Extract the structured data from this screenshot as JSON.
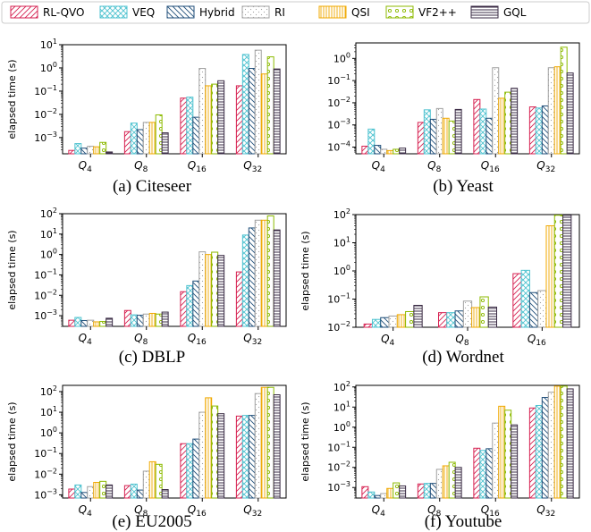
{
  "legend": [
    {
      "name": "RL-QVO",
      "color": "#d62050",
      "pattern": "fdiag"
    },
    {
      "name": "VEQ",
      "color": "#4fc3d0",
      "pattern": "cross"
    },
    {
      "name": "Hybrid",
      "color": "#1f4e79",
      "pattern": "bdiag"
    },
    {
      "name": "RI",
      "color": "#a0a0a0",
      "pattern": "dots"
    },
    {
      "name": "QSI",
      "color": "#f0a800",
      "pattern": "vert"
    },
    {
      "name": "VF2++",
      "color": "#8cba00",
      "pattern": "circles"
    },
    {
      "name": "GQL",
      "color": "#3a2b44",
      "pattern": "horiz"
    }
  ],
  "chart_data": [
    {
      "type": "bar",
      "caption": "(a) Citeseer",
      "ylabel": "elapsed time (s)",
      "yscale": "log",
      "ylim": [
        0.0002,
        10
      ],
      "ticks": [
        0.001,
        0.01,
        0.1,
        1,
        10
      ],
      "tick_labels": [
        "10^-3",
        "10^-2",
        "10^-1",
        "10^0",
        "10^1"
      ],
      "categories": [
        [
          "Q",
          "4"
        ],
        [
          "Q",
          "8"
        ],
        [
          "Q",
          "16"
        ],
        [
          "Q",
          "32"
        ]
      ],
      "series": [
        {
          "name": "RL-QVO",
          "values": [
            0.00028,
            0.0018,
            0.05,
            0.17
          ]
        },
        {
          "name": "VEQ",
          "values": [
            0.00055,
            0.0042,
            0.055,
            3.8
          ]
        },
        {
          "name": "Hybrid",
          "values": [
            0.00035,
            0.0022,
            0.0075,
            0.95
          ]
        },
        {
          "name": "RI",
          "values": [
            0.00042,
            0.0045,
            0.95,
            5.8
          ]
        },
        {
          "name": "QSI",
          "values": [
            0.0004,
            0.0045,
            0.17,
            0.55
          ]
        },
        {
          "name": "VF2++",
          "values": [
            0.00062,
            0.0095,
            0.2,
            3.0
          ]
        },
        {
          "name": "GQL",
          "values": [
            0.00024,
            0.0016,
            0.28,
            0.9
          ]
        }
      ]
    },
    {
      "type": "bar",
      "caption": "(b) Yeast",
      "ylabel": "",
      "yscale": "log",
      "ylim": [
        5e-05,
        5
      ],
      "ticks": [
        0.0001,
        0.001,
        0.01,
        0.1,
        1
      ],
      "tick_labels": [
        "10^-4",
        "10^-3",
        "10^-2",
        "10^-1",
        "10^0"
      ],
      "categories": [
        [
          "Q",
          "4"
        ],
        [
          "Q",
          "8"
        ],
        [
          "Q",
          "16"
        ],
        [
          "Q",
          "32"
        ]
      ],
      "series": [
        {
          "name": "RL-QVO",
          "values": [
            0.00011,
            0.0013,
            0.014,
            0.0065
          ]
        },
        {
          "name": "VEQ",
          "values": [
            0.00065,
            0.0048,
            0.0052,
            0.0058
          ]
        },
        {
          "name": "Hybrid",
          "values": [
            0.00012,
            0.0018,
            0.002,
            0.0072
          ]
        },
        {
          "name": "RI",
          "values": [
            8e-05,
            0.0055,
            0.38,
            0.38
          ]
        },
        {
          "name": "QSI",
          "values": [
            7e-05,
            0.002,
            0.016,
            0.42
          ]
        },
        {
          "name": "VF2++",
          "values": [
            8e-05,
            0.0015,
            0.03,
            3.2
          ]
        },
        {
          "name": "GQL",
          "values": [
            9e-05,
            0.005,
            0.045,
            0.22
          ]
        }
      ]
    },
    {
      "type": "bar",
      "caption": "(c) DBLP",
      "ylabel": "elapsed time (s)",
      "yscale": "log",
      "ylim": [
        0.0003,
        100
      ],
      "ticks": [
        0.001,
        0.01,
        0.1,
        1,
        10,
        100
      ],
      "tick_labels": [
        "10^-3",
        "10^-2",
        "10^-1",
        "10^0",
        "10^1",
        "10^2"
      ],
      "categories": [
        [
          "Q",
          "4"
        ],
        [
          "Q",
          "8"
        ],
        [
          "Q",
          "16"
        ],
        [
          "Q",
          "32"
        ]
      ],
      "series": [
        {
          "name": "RL-QVO",
          "values": [
            0.0006,
            0.0018,
            0.015,
            0.14
          ]
        },
        {
          "name": "VEQ",
          "values": [
            0.00082,
            0.0011,
            0.03,
            9
          ]
        },
        {
          "name": "Hybrid",
          "values": [
            0.00058,
            0.00105,
            0.05,
            20
          ]
        },
        {
          "name": "RI",
          "values": [
            0.0006,
            0.0012,
            1.35,
            48
          ]
        },
        {
          "name": "QSI",
          "values": [
            0.0005,
            0.0013,
            1.0,
            48
          ]
        },
        {
          "name": "VF2++",
          "values": [
            0.00052,
            0.0012,
            1.3,
            78
          ]
        },
        {
          "name": "GQL",
          "values": [
            0.00075,
            0.0015,
            0.9,
            16
          ]
        }
      ]
    },
    {
      "type": "bar",
      "caption": "(d) Wordnet",
      "ylabel": "elapsed time (s)",
      "yscale": "log",
      "ylim": [
        0.01,
        100
      ],
      "ticks": [
        0.01,
        0.1,
        1,
        10,
        100
      ],
      "tick_labels": [
        "10^-2",
        "10^-1",
        "10^0",
        "10^1",
        "10^2"
      ],
      "categories": [
        [
          "Q",
          "4"
        ],
        [
          "Q",
          "8"
        ],
        [
          "Q16",
          ""
        ]
      ],
      "cat_labels_raw": [
        [
          "Q",
          "4"
        ],
        [
          "Q",
          "8"
        ],
        [
          "Q",
          "16"
        ]
      ],
      "series": [
        {
          "name": "RL-QVO",
          "values": [
            0.013,
            0.033,
            0.8
          ]
        },
        {
          "name": "VEQ",
          "values": [
            0.019,
            0.033,
            1.05
          ]
        },
        {
          "name": "Hybrid",
          "values": [
            0.022,
            0.038,
            0.17
          ]
        },
        {
          "name": "RI",
          "values": [
            0.025,
            0.085,
            0.2
          ]
        },
        {
          "name": "QSI",
          "values": [
            0.028,
            0.05,
            40
          ]
        },
        {
          "name": "VF2++",
          "values": [
            0.036,
            0.12,
            95
          ]
        },
        {
          "name": "GQL",
          "values": [
            0.06,
            0.052,
            95
          ]
        }
      ]
    },
    {
      "type": "bar",
      "caption": "(e) EU2005",
      "ylabel": "elapsed time (s)",
      "yscale": "log",
      "ylim": [
        0.0007,
        200
      ],
      "ticks": [
        0.001,
        0.01,
        0.1,
        1,
        10,
        100
      ],
      "tick_labels": [
        "10^-3",
        "10^-2",
        "10^-1",
        "10^0",
        "10^1",
        "10^2"
      ],
      "categories": [
        [
          "Q",
          "4"
        ],
        [
          "Q",
          "8"
        ],
        [
          "Q",
          "16"
        ],
        [
          "Q",
          "32"
        ]
      ],
      "series": [
        {
          "name": "RL-QVO",
          "values": [
            0.0019,
            0.0028,
            0.3,
            6.5
          ]
        },
        {
          "name": "VEQ",
          "values": [
            0.003,
            0.0033,
            0.3,
            7
          ]
        },
        {
          "name": "Hybrid",
          "values": [
            0.0013,
            0.0017,
            0.5,
            7
          ]
        },
        {
          "name": "RI",
          "values": [
            0.0025,
            0.014,
            10,
            80
          ]
        },
        {
          "name": "QSI",
          "values": [
            0.004,
            0.04,
            50,
            160
          ]
        },
        {
          "name": "VF2++",
          "values": [
            0.0045,
            0.03,
            20,
            160
          ]
        },
        {
          "name": "GQL",
          "values": [
            0.003,
            0.0018,
            8.5,
            70
          ]
        }
      ]
    },
    {
      "type": "bar",
      "caption": "(f) Youtube",
      "ylabel": "elapsed time (s)",
      "yscale": "log",
      "ylim": [
        0.0003,
        120
      ],
      "ticks": [
        0.001,
        0.01,
        0.1,
        1,
        10,
        100
      ],
      "tick_labels": [
        "10^-3",
        "10^-2",
        "10^-1",
        "10^0",
        "10^1",
        "10^2"
      ],
      "categories": [
        [
          "Q",
          "4"
        ],
        [
          "Q",
          "8"
        ],
        [
          "Q",
          "16"
        ],
        [
          "Q",
          "32"
        ]
      ],
      "series": [
        {
          "name": "RL-QVO",
          "values": [
            0.0011,
            0.0015,
            0.09,
            9
          ]
        },
        {
          "name": "VEQ",
          "values": [
            0.0006,
            0.0016,
            0.07,
            12
          ]
        },
        {
          "name": "Hybrid",
          "values": [
            0.0004,
            0.0016,
            0.085,
            30
          ]
        },
        {
          "name": "RI",
          "values": [
            0.0005,
            0.008,
            1.6,
            55
          ]
        },
        {
          "name": "QSI",
          "values": [
            0.0009,
            0.012,
            11,
            110
          ]
        },
        {
          "name": "VF2++",
          "values": [
            0.0017,
            0.018,
            7,
            110
          ]
        },
        {
          "name": "GQL",
          "values": [
            0.0012,
            0.01,
            1.3,
            80
          ]
        }
      ]
    }
  ]
}
